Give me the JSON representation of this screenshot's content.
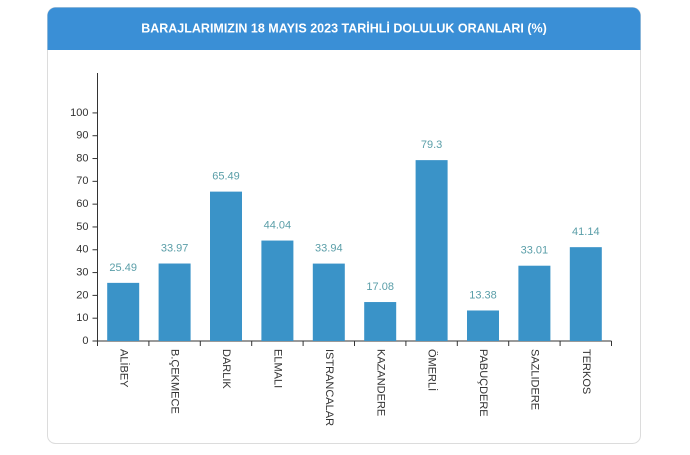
{
  "chart_data": {
    "type": "bar",
    "title": "BARAJLARIMIZIN 18 MAYIS 2023 TARİHLİ DOLULUK ORANLARI (%)",
    "categories": [
      "ALİBEY",
      "B.ÇEKMECE",
      "DARLIK",
      "ELMALI",
      "ISTRANCALAR",
      "KAZANDERE",
      "ÖMERLİ",
      "PABUÇDERE",
      "SAZLIDERE",
      "TERKOS"
    ],
    "values": [
      25.49,
      33.97,
      65.49,
      44.04,
      33.94,
      17.08,
      79.3,
      13.38,
      33.01,
      41.14
    ],
    "color": "#3a93c8",
    "ylim": [
      0,
      117.5
    ],
    "yticks": [
      0,
      10,
      20,
      30,
      40,
      50,
      60,
      70,
      80,
      90,
      100
    ],
    "grid": false
  }
}
